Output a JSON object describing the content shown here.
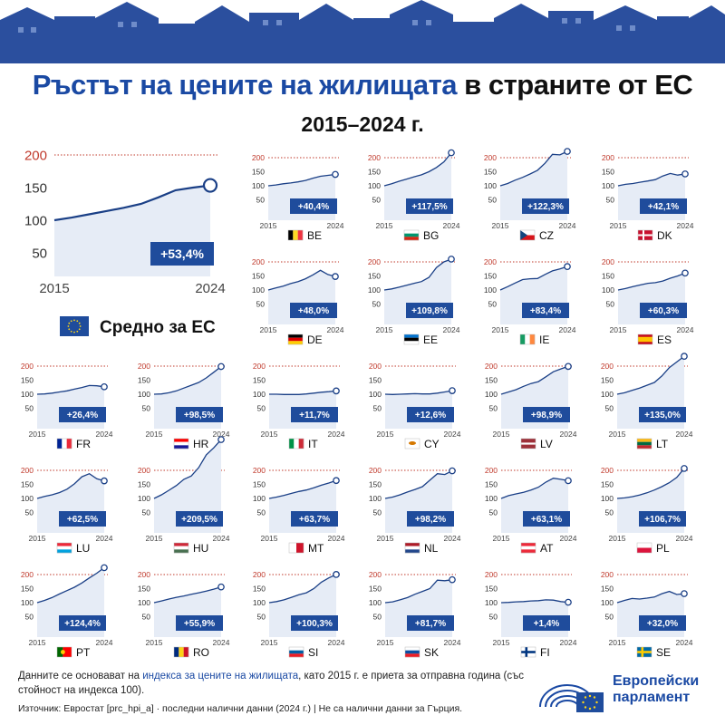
{
  "header": {
    "title_highlight": "Ръстът на цените на жилищата",
    "title_rest": " в страните от ЕС",
    "subtitle": "2015–2024 г."
  },
  "colors": {
    "accent_blue": "#1a49a3",
    "badge_blue": "#1f4c9c",
    "area_fill": "#e6ecf6",
    "line": "#1a3f86",
    "grid_red": "#c0392b",
    "skyline": "#2b4f9e"
  },
  "chart_data": {
    "type": "area",
    "x_start_label": "2015",
    "x_end_label": "2024",
    "y_ticks": [
      50,
      100,
      150,
      200
    ],
    "highlight_tick": 200,
    "ylim": [
      30,
      215
    ],
    "eu_average": {
      "label": "Средно за ЕС",
      "change_label": "+53,4%",
      "values": [
        100,
        104,
        109,
        114,
        119,
        125,
        135,
        146,
        150,
        153.4
      ]
    },
    "countries": [
      {
        "code": "BE",
        "change_label": "+40,4%",
        "values": [
          100,
          103,
          107,
          110,
          114,
          119,
          127,
          134,
          137,
          140.4
        ],
        "flag": "be"
      },
      {
        "code": "BG",
        "change_label": "+117,5%",
        "values": [
          100,
          107,
          116,
          124,
          132,
          139,
          150,
          165,
          185,
          217.5
        ],
        "flag": "bg"
      },
      {
        "code": "CZ",
        "change_label": "+122,3%",
        "values": [
          100,
          108,
          120,
          130,
          142,
          155,
          180,
          212,
          210,
          222.3
        ],
        "flag": "cz"
      },
      {
        "code": "DK",
        "change_label": "+42,1%",
        "values": [
          100,
          105,
          108,
          113,
          117,
          122,
          135,
          144,
          138,
          142.1
        ],
        "flag": "dk"
      },
      {
        "code": "DE",
        "change_label": "+48,0%",
        "values": [
          100,
          107,
          114,
          123,
          130,
          140,
          154,
          170,
          155,
          148.0
        ],
        "flag": "de"
      },
      {
        "code": "EE",
        "change_label": "+109,8%",
        "values": [
          100,
          104,
          110,
          117,
          124,
          130,
          145,
          180,
          200,
          209.8
        ],
        "flag": "ee"
      },
      {
        "code": "IE",
        "change_label": "+83,4%",
        "values": [
          100,
          112,
          125,
          137,
          140,
          141,
          155,
          168,
          175,
          183.4
        ],
        "flag": "ie"
      },
      {
        "code": "ES",
        "change_label": "+60,3%",
        "values": [
          100,
          105,
          112,
          118,
          124,
          126,
          132,
          142,
          150,
          160.3
        ],
        "flag": "es"
      },
      {
        "code": "FR",
        "change_label": "+26,4%",
        "values": [
          100,
          101,
          104,
          108,
          112,
          118,
          124,
          131,
          130,
          126.4
        ],
        "flag": "fr"
      },
      {
        "code": "HR",
        "change_label": "+98,5%",
        "values": [
          100,
          101,
          105,
          112,
          122,
          132,
          142,
          158,
          178,
          198.5
        ],
        "flag": "hr"
      },
      {
        "code": "IT",
        "change_label": "+11,7%",
        "values": [
          100,
          100,
          99,
          99,
          99,
          101,
          104,
          107,
          109,
          111.7
        ],
        "flag": "it"
      },
      {
        "code": "CY",
        "change_label": "+12,6%",
        "values": [
          100,
          99,
          100,
          101,
          102,
          101,
          101,
          104,
          108,
          112.6
        ],
        "flag": "cy"
      },
      {
        "code": "LV",
        "change_label": "+98,9%",
        "values": [
          100,
          108,
          116,
          128,
          138,
          145,
          162,
          180,
          190,
          198.9
        ],
        "flag": "lv"
      },
      {
        "code": "LT",
        "change_label": "+135,0%",
        "values": [
          100,
          105,
          114,
          122,
          132,
          142,
          165,
          195,
          215,
          235.0
        ],
        "flag": "lt"
      },
      {
        "code": "LU",
        "change_label": "+62,5%",
        "values": [
          100,
          107,
          113,
          121,
          133,
          152,
          177,
          188,
          170,
          162.5
        ],
        "flag": "lu"
      },
      {
        "code": "HU",
        "change_label": "+209,5%",
        "values": [
          100,
          113,
          129,
          146,
          168,
          180,
          210,
          255,
          280,
          309.5
        ],
        "flag": "hu"
      },
      {
        "code": "MT",
        "change_label": "+63,7%",
        "values": [
          100,
          105,
          111,
          118,
          125,
          130,
          138,
          147,
          155,
          163.7
        ],
        "flag": "mt"
      },
      {
        "code": "NL",
        "change_label": "+98,2%",
        "values": [
          100,
          105,
          113,
          123,
          132,
          142,
          165,
          188,
          185,
          198.2
        ],
        "flag": "nl"
      },
      {
        "code": "AT",
        "change_label": "+63,1%",
        "values": [
          100,
          110,
          116,
          122,
          130,
          140,
          158,
          172,
          168,
          163.1
        ],
        "flag": "at"
      },
      {
        "code": "PL",
        "change_label": "+106,7%",
        "values": [
          100,
          102,
          106,
          112,
          120,
          130,
          142,
          156,
          175,
          206.7
        ],
        "flag": "pl"
      },
      {
        "code": "PT",
        "change_label": "+124,4%",
        "values": [
          100,
          108,
          118,
          131,
          143,
          155,
          170,
          188,
          205,
          224.4
        ],
        "flag": "pt"
      },
      {
        "code": "RO",
        "change_label": "+55,9%",
        "values": [
          100,
          106,
          113,
          119,
          124,
          130,
          135,
          141,
          148,
          155.9
        ],
        "flag": "ro"
      },
      {
        "code": "SI",
        "change_label": "+100,3%",
        "values": [
          100,
          104,
          110,
          119,
          128,
          135,
          150,
          173,
          188,
          200.3
        ],
        "flag": "si"
      },
      {
        "code": "SK",
        "change_label": "+81,7%",
        "values": [
          100,
          103,
          110,
          118,
          130,
          140,
          150,
          180,
          178,
          181.7
        ],
        "flag": "sk"
      },
      {
        "code": "FI",
        "change_label": "+1,4%",
        "values": [
          100,
          101,
          103,
          104,
          106,
          107,
          110,
          109,
          104,
          101.4
        ],
        "flag": "fi"
      },
      {
        "code": "SE",
        "change_label": "+32,0%",
        "values": [
          100,
          108,
          115,
          113,
          116,
          120,
          132,
          140,
          129,
          132.0
        ],
        "flag": "se"
      }
    ]
  },
  "footer": {
    "note_before": "Данните се основават на ",
    "note_link": "индекса за цените на жилищата",
    "note_after": ", като 2015  г. е приета за отправна година (със стойност на индекса 100).",
    "source": "Източник: Евростат [prc_hpi_a]  ·  последни налични данни (2024 г.)  |  Не са налични данни за Гърция.",
    "logo_line1": "Европейски",
    "logo_line2": "парламент"
  }
}
